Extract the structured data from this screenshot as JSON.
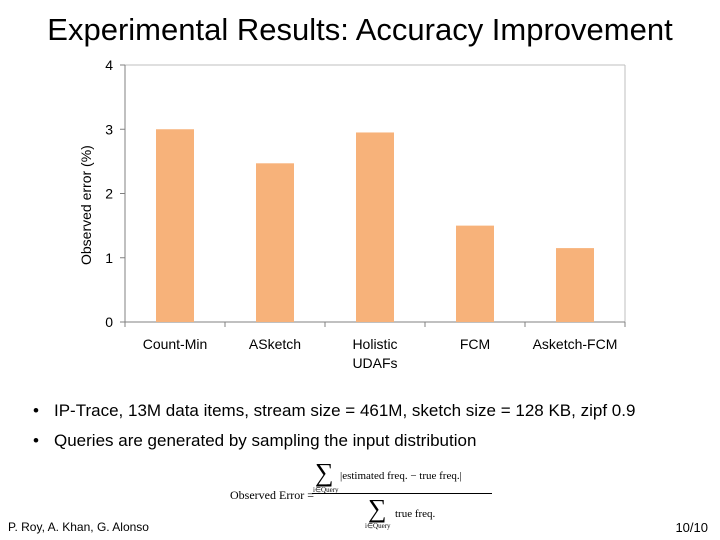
{
  "slide": {
    "title": "Experimental Results: Accuracy Improvement",
    "bullets": [
      "IP-Trace, 13M data items,  stream size = 461M, sketch size = 128 KB,  zipf 0.9",
      "Queries are generated by sampling the input distribution"
    ],
    "formula": {
      "lhs": "Observed Error =",
      "numerator": "|estimated freq. − true freq.|",
      "denominator": "true freq.",
      "sum_index": "i∈Query"
    },
    "footer_left": "P. Roy, A. Khan, G. Alonso",
    "footer_right": "10/10"
  },
  "chart_data": {
    "type": "bar",
    "categories": [
      "Count-Min",
      "ASketch",
      "Holistic UDAFs",
      "FCM",
      "Asketch-FCM"
    ],
    "values": [
      3.0,
      2.47,
      2.95,
      1.5,
      1.15
    ],
    "ylabel": "Observed error (%)",
    "ylim": [
      0,
      4
    ],
    "yticks": [
      0,
      1,
      2,
      3,
      4
    ],
    "bar_color": "#f7b27a",
    "grid": false
  }
}
